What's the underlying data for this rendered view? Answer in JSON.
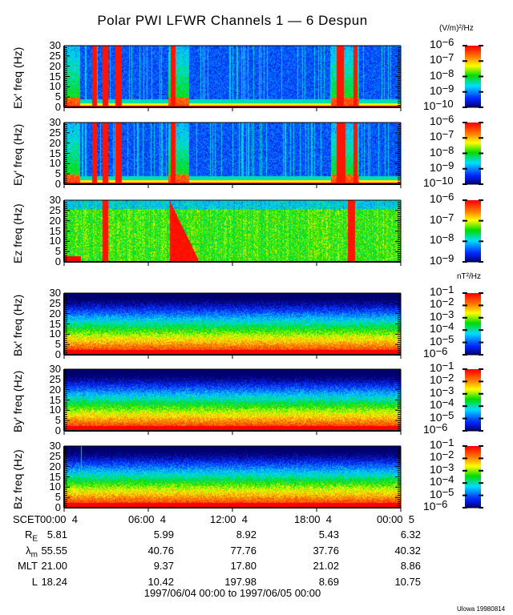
{
  "title": "Polar PWI LFWR Channels 1 — 6 Despun",
  "units": {
    "electric": "(V/m)²/Hz",
    "magnetic": "nT²/Hz"
  },
  "credit": "Ulowa 19980814",
  "date_range": "1997/06/04 00:00 to 1997/06/05 00:00",
  "colors": {
    "colormap": [
      "#000080",
      "#0030ff",
      "#00e0ff",
      "#00e000",
      "#ffff00",
      "#ff8000",
      "#ff0000"
    ]
  },
  "chart_data": [
    {
      "type": "heatmap",
      "ylabel": "Ex' freq (Hz)",
      "ylim": [
        0,
        30
      ],
      "yticks": [
        "0",
        "5",
        "10",
        "15",
        "20",
        "25",
        "30"
      ],
      "xlim_hours": [
        0,
        24
      ],
      "colorbar": {
        "scale": "log",
        "range": [
          1e-10,
          1e-06
        ],
        "ticks": [
          "-6",
          "-7",
          "-8",
          "-9",
          "-10"
        ]
      },
      "features": {
        "kind": "electric",
        "bursts_hours": [
          [
            2.0,
            2.3
          ],
          [
            2.7,
            3.1
          ],
          [
            3.6,
            4.1
          ],
          [
            7.6,
            7.9
          ],
          [
            19.4,
            19.9
          ],
          [
            20.6,
            20.9
          ]
        ],
        "broadband_hours": [
          [
            0,
            1.1
          ],
          [
            7.4,
            8.9
          ],
          [
            19.0,
            21.0
          ]
        ]
      }
    },
    {
      "type": "heatmap",
      "ylabel": "Ey' freq (Hz)",
      "ylim": [
        0,
        30
      ],
      "yticks": [
        "0",
        "5",
        "10",
        "15",
        "20",
        "25",
        "30"
      ],
      "xlim_hours": [
        0,
        24
      ],
      "colorbar": {
        "scale": "log",
        "range": [
          1e-10,
          1e-06
        ],
        "ticks": [
          "-6",
          "-7",
          "-8",
          "-9",
          "-10"
        ]
      },
      "features": {
        "kind": "electric",
        "bursts_hours": [
          [
            2.0,
            2.3
          ],
          [
            2.7,
            3.1
          ],
          [
            3.6,
            4.1
          ],
          [
            7.6,
            7.9
          ],
          [
            19.4,
            20.0
          ],
          [
            20.6,
            20.9
          ]
        ],
        "broadband_hours": [
          [
            0,
            1.1
          ],
          [
            7.4,
            8.9
          ],
          [
            19.0,
            21.0
          ]
        ]
      }
    },
    {
      "type": "heatmap",
      "ylabel": "Ez freq (Hz)",
      "ylim": [
        0,
        30
      ],
      "yticks": [
        "0",
        "5",
        "10",
        "15",
        "20",
        "25",
        "30"
      ],
      "xlim_hours": [
        0,
        24
      ],
      "colorbar": {
        "scale": "log",
        "range": [
          1e-09,
          1e-06
        ],
        "ticks": [
          "-6",
          "-7",
          "-8",
          "-9"
        ]
      },
      "features": {
        "kind": "ez",
        "bursts_hours": [
          [
            2.7,
            3.1
          ],
          [
            7.5,
            9.5
          ],
          [
            20.2,
            20.7
          ]
        ],
        "broadband_hours": [
          [
            0,
            24
          ]
        ]
      }
    },
    {
      "type": "heatmap",
      "ylabel": "Bx' freq (Hz)",
      "ylim": [
        0,
        30
      ],
      "yticks": [
        "0",
        "5",
        "10",
        "15",
        "20",
        "25",
        "30"
      ],
      "xlim_hours": [
        0,
        24
      ],
      "colorbar": {
        "scale": "log",
        "range": [
          1e-06,
          0.1
        ],
        "ticks": [
          "-1",
          "-2",
          "-3",
          "-4",
          "-5",
          "-6"
        ]
      },
      "features": {
        "kind": "magnetic"
      }
    },
    {
      "type": "heatmap",
      "ylabel": "By' freq (Hz)",
      "ylim": [
        0,
        30
      ],
      "yticks": [
        "0",
        "5",
        "10",
        "15",
        "20",
        "25",
        "30"
      ],
      "xlim_hours": [
        0,
        24
      ],
      "colorbar": {
        "scale": "log",
        "range": [
          1e-06,
          0.1
        ],
        "ticks": [
          "-1",
          "-2",
          "-3",
          "-4",
          "-5",
          "-6"
        ]
      },
      "features": {
        "kind": "magnetic"
      }
    },
    {
      "type": "heatmap",
      "ylabel": "Bz freq (Hz)",
      "ylim": [
        0,
        30
      ],
      "yticks": [
        "0",
        "5",
        "10",
        "15",
        "20",
        "25",
        "30"
      ],
      "xlim_hours": [
        0,
        24
      ],
      "colorbar": {
        "scale": "log",
        "range": [
          1e-06,
          0.1
        ],
        "ticks": [
          "-1",
          "-2",
          "-3",
          "-4",
          "-5",
          "-6"
        ]
      },
      "features": {
        "kind": "magnetic"
      }
    }
  ],
  "ephemeris": {
    "scet_label": "SCET",
    "times": [
      "00:00  4",
      "06:00  4",
      "12:00  4",
      "18:00  4",
      "00:00  5"
    ],
    "rows": [
      {
        "label": "R",
        "sub": "E",
        "values": [
          "5.81",
          "5.99",
          "8.92",
          "5.43",
          "6.32"
        ]
      },
      {
        "label": "λ",
        "sub": "m",
        "values": [
          "55.55",
          "40.76",
          "77.76",
          "37.76",
          "40.32"
        ]
      },
      {
        "label": "MLT",
        "sub": "",
        "values": [
          "21.00",
          "9.37",
          "17.80",
          "21.02",
          "8.86"
        ]
      },
      {
        "label": "L",
        "sub": "",
        "values": [
          "18.24",
          "10.42",
          "197.98",
          "8.69",
          "10.75"
        ]
      }
    ]
  }
}
